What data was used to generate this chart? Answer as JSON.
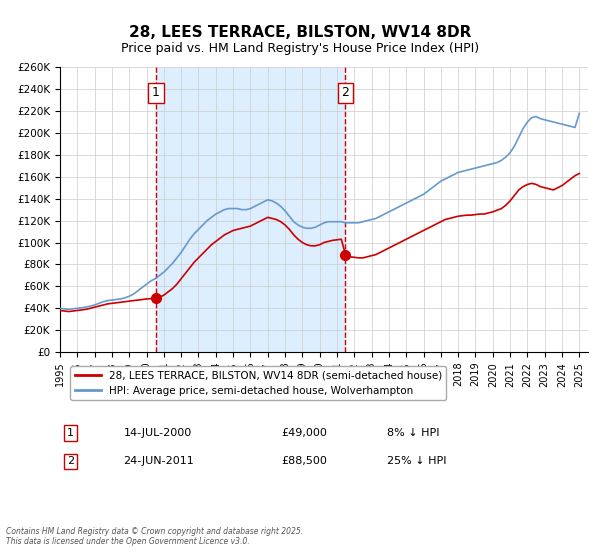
{
  "title": "28, LEES TERRACE, BILSTON, WV14 8DR",
  "subtitle": "Price paid vs. HM Land Registry's House Price Index (HPI)",
  "xlabel": "",
  "ylabel": "",
  "ylim": [
    0,
    260000
  ],
  "xlim_start": 1995.0,
  "xlim_end": 2025.5,
  "yticks": [
    0,
    20000,
    40000,
    60000,
    80000,
    100000,
    120000,
    140000,
    160000,
    180000,
    200000,
    220000,
    240000,
    260000
  ],
  "ytick_labels": [
    "£0",
    "£20K",
    "£40K",
    "£60K",
    "£80K",
    "£100K",
    "£120K",
    "£140K",
    "£160K",
    "£180K",
    "£200K",
    "£220K",
    "£240K",
    "£260K"
  ],
  "xticks": [
    1995,
    1996,
    1997,
    1998,
    1999,
    2000,
    2001,
    2002,
    2003,
    2004,
    2005,
    2006,
    2007,
    2008,
    2009,
    2010,
    2011,
    2012,
    2013,
    2014,
    2015,
    2016,
    2017,
    2018,
    2019,
    2020,
    2021,
    2022,
    2023,
    2024,
    2025
  ],
  "legend1_label": "28, LEES TERRACE, BILSTON, WV14 8DR (semi-detached house)",
  "legend2_label": "HPI: Average price, semi-detached house, Wolverhampton",
  "marker1_date": 2000.54,
  "marker1_price": 49000,
  "marker1_label": "1",
  "marker2_date": 2011.48,
  "marker2_price": 88500,
  "marker2_label": "2",
  "vline1_x": 2000.54,
  "vline2_x": 2011.48,
  "annotation1_text": "1",
  "annotation2_text": "2",
  "shade_x1": 2000.54,
  "shade_x2": 2011.48,
  "table_row1": [
    "1",
    "14-JUL-2000",
    "£49,000",
    "8% ↓ HPI"
  ],
  "table_row2": [
    "2",
    "24-JUN-2011",
    "£88,500",
    "25% ↓ HPI"
  ],
  "footer": "Contains HM Land Registry data © Crown copyright and database right 2025.\nThis data is licensed under the Open Government Licence v3.0.",
  "property_color": "#cc0000",
  "hpi_color": "#6699cc",
  "shade_color": "#ddeeff",
  "background_color": "#ffffff",
  "grid_color": "#cccccc",
  "title_fontsize": 11,
  "subtitle_fontsize": 9,
  "hpi_data_x": [
    1995.0,
    1995.25,
    1995.5,
    1995.75,
    1996.0,
    1996.25,
    1996.5,
    1996.75,
    1997.0,
    1997.25,
    1997.5,
    1997.75,
    1998.0,
    1998.25,
    1998.5,
    1998.75,
    1999.0,
    1999.25,
    1999.5,
    1999.75,
    2000.0,
    2000.25,
    2000.5,
    2000.75,
    2001.0,
    2001.25,
    2001.5,
    2001.75,
    2002.0,
    2002.25,
    2002.5,
    2002.75,
    2003.0,
    2003.25,
    2003.5,
    2003.75,
    2004.0,
    2004.25,
    2004.5,
    2004.75,
    2005.0,
    2005.25,
    2005.5,
    2005.75,
    2006.0,
    2006.25,
    2006.5,
    2006.75,
    2007.0,
    2007.25,
    2007.5,
    2007.75,
    2008.0,
    2008.25,
    2008.5,
    2008.75,
    2009.0,
    2009.25,
    2009.5,
    2009.75,
    2010.0,
    2010.25,
    2010.5,
    2010.75,
    2011.0,
    2011.25,
    2011.5,
    2011.75,
    2012.0,
    2012.25,
    2012.5,
    2012.75,
    2013.0,
    2013.25,
    2013.5,
    2013.75,
    2014.0,
    2014.25,
    2014.5,
    2014.75,
    2015.0,
    2015.25,
    2015.5,
    2015.75,
    2016.0,
    2016.25,
    2016.5,
    2016.75,
    2017.0,
    2017.25,
    2017.5,
    2017.75,
    2018.0,
    2018.25,
    2018.5,
    2018.75,
    2019.0,
    2019.25,
    2019.5,
    2019.75,
    2020.0,
    2020.25,
    2020.5,
    2020.75,
    2021.0,
    2021.25,
    2021.5,
    2021.75,
    2022.0,
    2022.25,
    2022.5,
    2022.75,
    2023.0,
    2023.25,
    2023.5,
    2023.75,
    2024.0,
    2024.25,
    2024.5,
    2024.75,
    2025.0
  ],
  "hpi_data_y": [
    40000,
    39500,
    39000,
    39500,
    40000,
    40500,
    41000,
    42000,
    43000,
    44500,
    46000,
    47000,
    47500,
    48000,
    48500,
    49500,
    51000,
    53000,
    56000,
    59000,
    62000,
    65000,
    67000,
    70000,
    73000,
    77000,
    81000,
    86000,
    91000,
    97000,
    103000,
    108000,
    112000,
    116000,
    120000,
    123000,
    126000,
    128000,
    130000,
    131000,
    131000,
    131000,
    130000,
    130000,
    131000,
    133000,
    135000,
    137000,
    139000,
    138000,
    136000,
    133000,
    129000,
    124000,
    119000,
    116000,
    114000,
    113000,
    113000,
    114000,
    116000,
    118000,
    119000,
    119000,
    119000,
    119000,
    118000,
    118000,
    118000,
    118000,
    119000,
    120000,
    121000,
    122000,
    124000,
    126000,
    128000,
    130000,
    132000,
    134000,
    136000,
    138000,
    140000,
    142000,
    144000,
    147000,
    150000,
    153000,
    156000,
    158000,
    160000,
    162000,
    164000,
    165000,
    166000,
    167000,
    168000,
    169000,
    170000,
    171000,
    172000,
    173000,
    175000,
    178000,
    182000,
    188000,
    196000,
    204000,
    210000,
    214000,
    215000,
    213000,
    212000,
    211000,
    210000,
    209000,
    208000,
    207000,
    206000,
    205000,
    218000
  ],
  "prop_data_x": [
    1995.0,
    1995.25,
    1995.5,
    1995.75,
    1996.0,
    1996.25,
    1996.5,
    1996.75,
    1997.0,
    1997.25,
    1997.5,
    1997.75,
    1998.0,
    1998.25,
    1998.5,
    1998.75,
    1999.0,
    1999.25,
    1999.5,
    1999.75,
    2000.0,
    2000.25,
    2000.5,
    2000.75,
    2001.0,
    2001.25,
    2001.5,
    2001.75,
    2002.0,
    2002.25,
    2002.5,
    2002.75,
    2003.0,
    2003.25,
    2003.5,
    2003.75,
    2004.0,
    2004.25,
    2004.5,
    2004.75,
    2005.0,
    2005.25,
    2005.5,
    2005.75,
    2006.0,
    2006.25,
    2006.5,
    2006.75,
    2007.0,
    2007.25,
    2007.5,
    2007.75,
    2008.0,
    2008.25,
    2008.5,
    2008.75,
    2009.0,
    2009.25,
    2009.5,
    2009.75,
    2010.0,
    2010.25,
    2010.5,
    2010.75,
    2011.0,
    2011.25,
    2011.5,
    2011.75,
    2012.0,
    2012.25,
    2012.5,
    2012.75,
    2013.0,
    2013.25,
    2013.5,
    2013.75,
    2014.0,
    2014.25,
    2014.5,
    2014.75,
    2015.0,
    2015.25,
    2015.5,
    2015.75,
    2016.0,
    2016.25,
    2016.5,
    2016.75,
    2017.0,
    2017.25,
    2017.5,
    2017.75,
    2018.0,
    2018.25,
    2018.5,
    2018.75,
    2019.0,
    2019.25,
    2019.5,
    2019.75,
    2020.0,
    2020.25,
    2020.5,
    2020.75,
    2021.0,
    2021.25,
    2021.5,
    2021.75,
    2022.0,
    2022.25,
    2022.5,
    2022.75,
    2023.0,
    2023.25,
    2023.5,
    2023.75,
    2024.0,
    2024.25,
    2024.5,
    2024.75,
    2025.0
  ],
  "prop_data_y": [
    38000,
    37500,
    37000,
    37500,
    38000,
    38500,
    39000,
    40000,
    41000,
    42000,
    43000,
    44000,
    44500,
    45000,
    45500,
    46000,
    46500,
    47000,
    47500,
    48000,
    48500,
    48800,
    49000,
    50000,
    52000,
    55000,
    58000,
    62000,
    67000,
    72000,
    77000,
    82000,
    86000,
    90000,
    94000,
    98000,
    101000,
    104000,
    107000,
    109000,
    111000,
    112000,
    113000,
    114000,
    115000,
    117000,
    119000,
    121000,
    123000,
    122000,
    121000,
    119000,
    116000,
    112000,
    107000,
    103000,
    100000,
    98000,
    97000,
    97000,
    98000,
    100000,
    101000,
    102000,
    102500,
    103000,
    88500,
    87000,
    86500,
    86000,
    86000,
    87000,
    88000,
    89000,
    91000,
    93000,
    95000,
    97000,
    99000,
    101000,
    103000,
    105000,
    107000,
    109000,
    111000,
    113000,
    115000,
    117000,
    119000,
    121000,
    122000,
    123000,
    124000,
    124500,
    125000,
    125000,
    125500,
    126000,
    126000,
    127000,
    128000,
    129500,
    131000,
    134000,
    138000,
    143000,
    148000,
    151000,
    153000,
    154000,
    153000,
    151000,
    150000,
    149000,
    148000,
    150000,
    152000,
    155000,
    158000,
    161000,
    163000
  ]
}
